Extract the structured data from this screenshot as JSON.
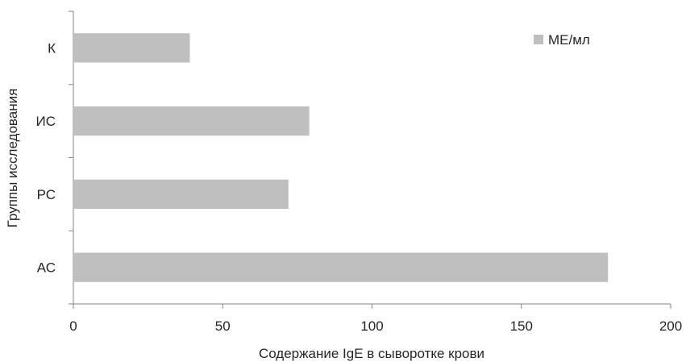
{
  "chart_data": {
    "type": "bar",
    "orientation": "horizontal",
    "categories": [
      "К",
      "ИС",
      "РС",
      "АС"
    ],
    "series": [
      {
        "name": "МЕ/мл",
        "values": [
          39,
          79,
          72,
          179
        ],
        "color": "#bfbfbf"
      }
    ],
    "xlabel": "Содержание IgE в сыворотке крови",
    "ylabel": "Группы исследования",
    "xlim": [
      0,
      200
    ],
    "xticks": [
      0,
      50,
      100,
      150,
      200
    ],
    "grid": false,
    "legend": "top-right",
    "axis_color": "#868686"
  }
}
